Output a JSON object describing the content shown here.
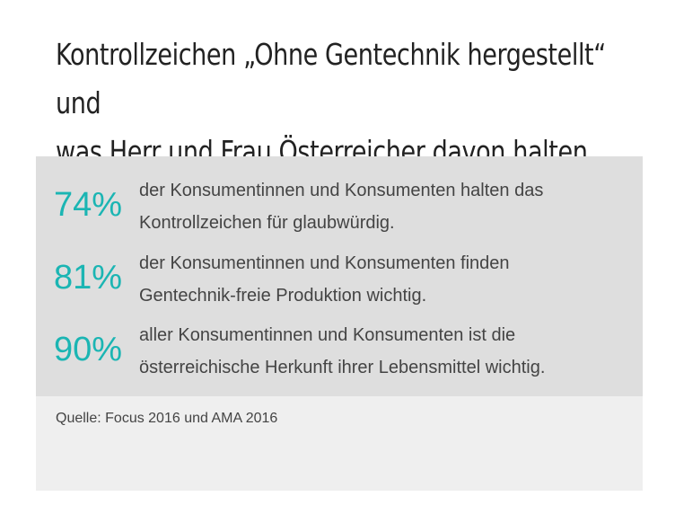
{
  "header": {
    "title_line1": "Kontrollzeichen „Ohne Gentechnik hergestellt“ und",
    "title_line2": "was Herr und Frau Österreicher davon halten"
  },
  "stats": [
    {
      "value": "74%",
      "line1": "der Konsumentinnen und Konsumenten halten das",
      "line2": "Kontrollzeichen für glaubwürdig."
    },
    {
      "value": "81%",
      "line1": "der Konsumentinnen und Konsumenten finden",
      "line2": "Gentechnik-freie Produktion wichtig."
    },
    {
      "value": "90%",
      "line1": "aller Konsumentinnen und Konsumenten ist die",
      "line2": "österreichische Herkunft ihrer Lebensmittel wichtig."
    }
  ],
  "source": {
    "text": "Quelle: Focus 2016 und AMA 2016"
  },
  "colors": {
    "accent": "#1bb5b3",
    "stats_background": "#dedede",
    "source_background": "#efefef"
  }
}
